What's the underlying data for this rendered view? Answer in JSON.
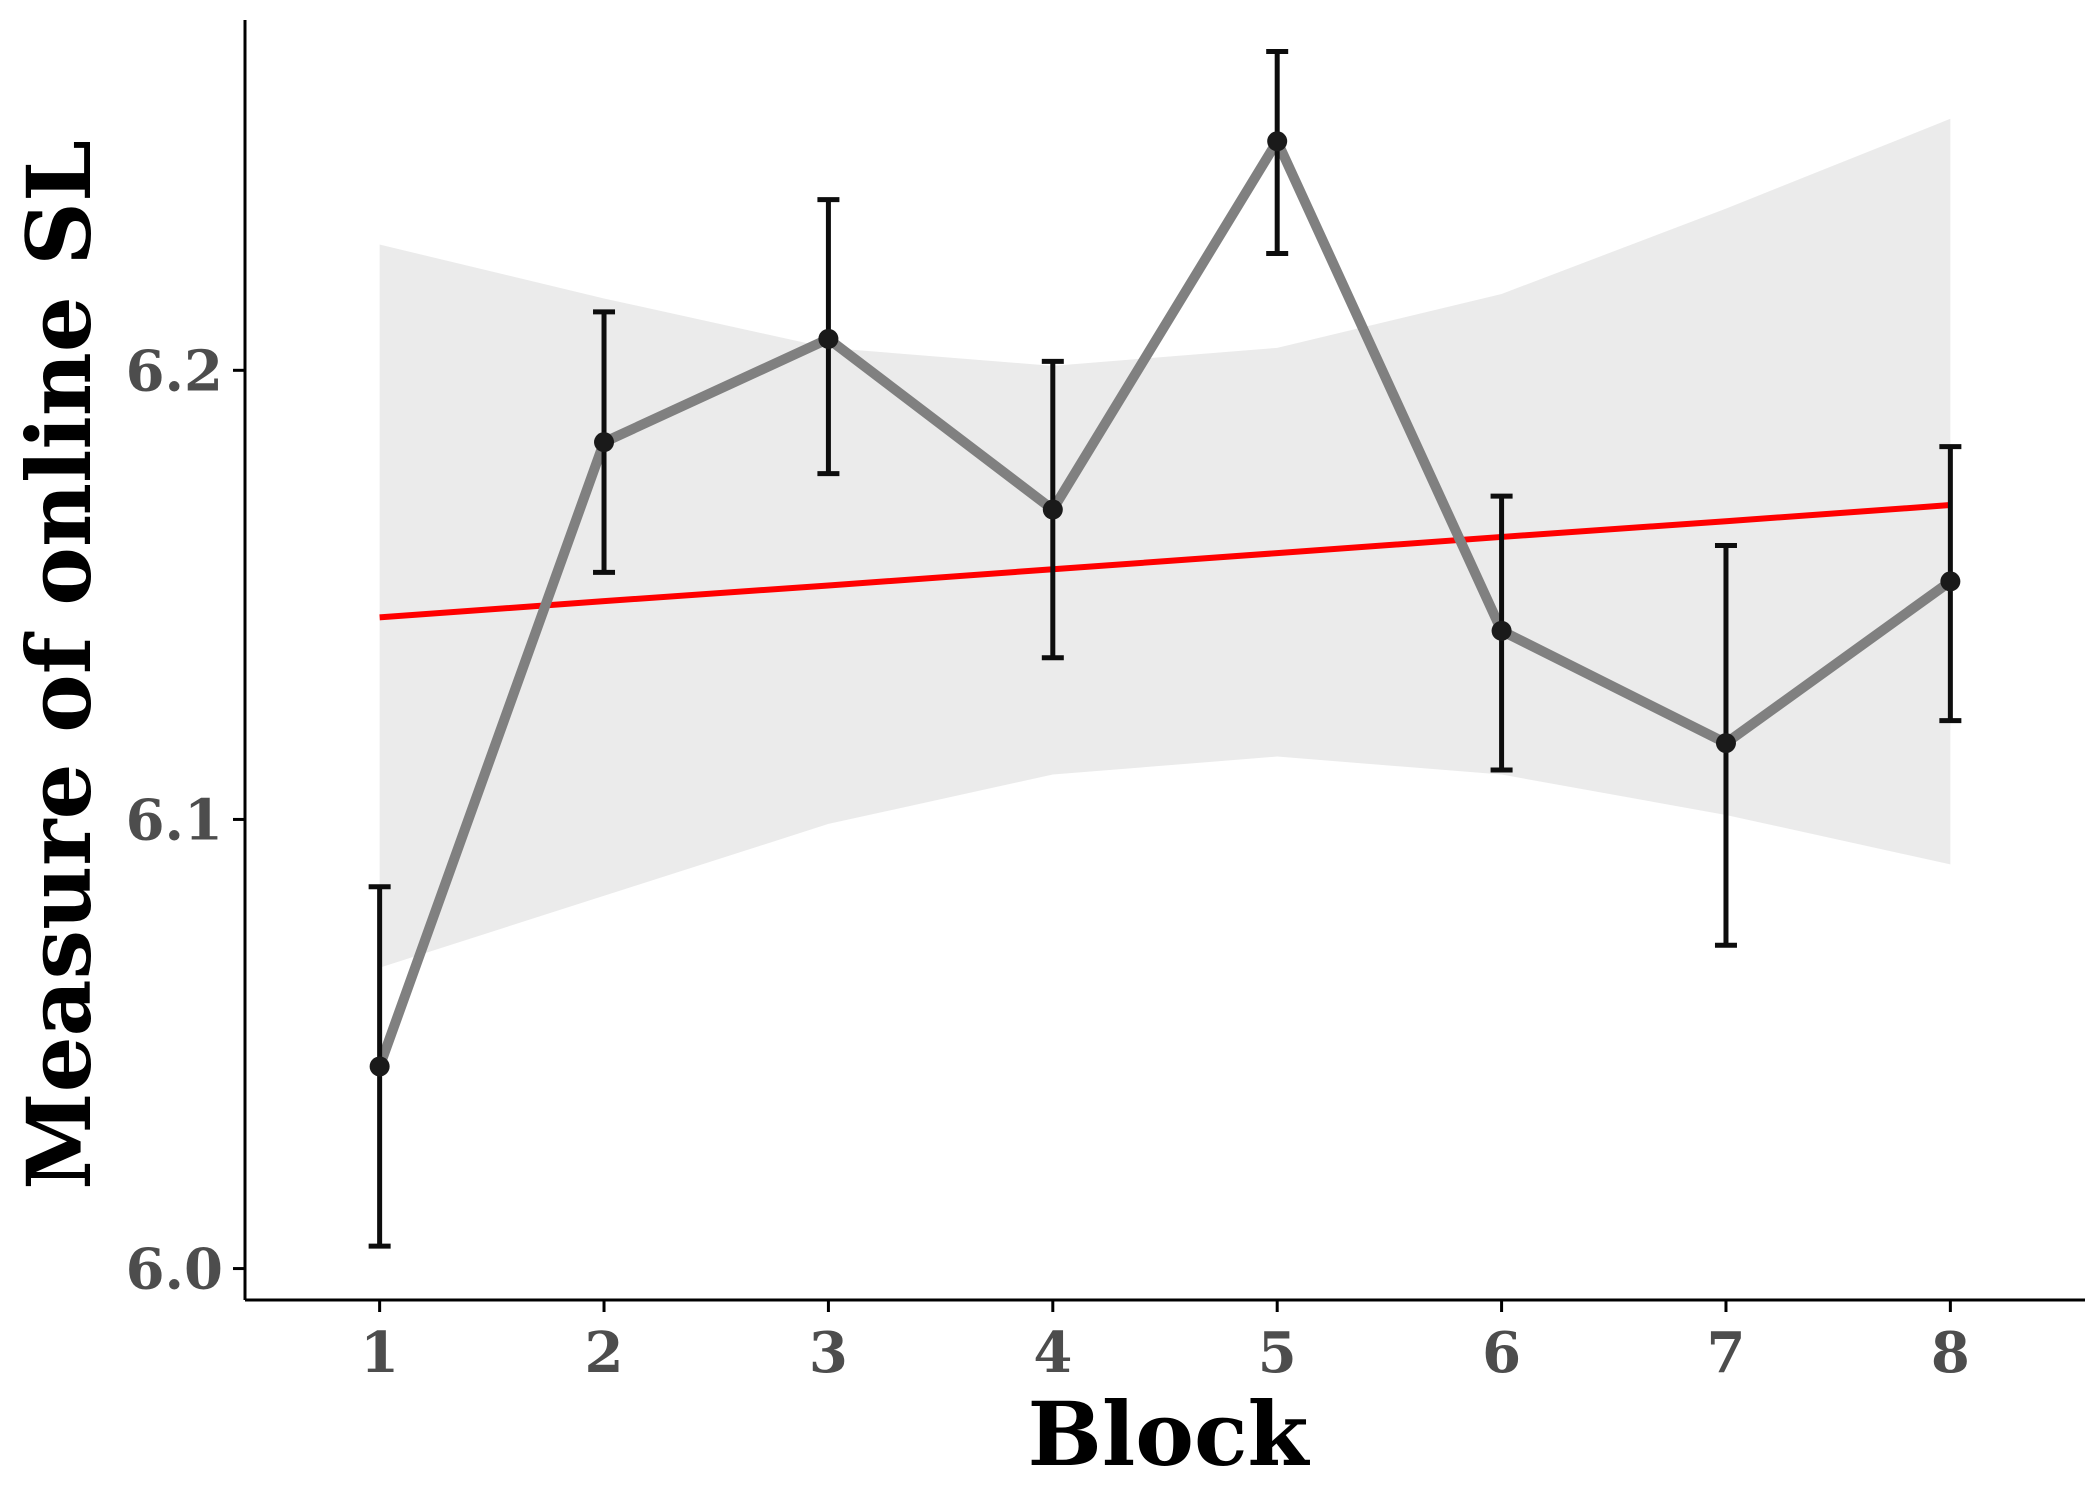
{
  "chart_data": {
    "type": "line",
    "xlabel": "Block",
    "ylabel": "Measure of online SL",
    "x": [
      1,
      2,
      3,
      4,
      5,
      6,
      7,
      8
    ],
    "xticks": [
      "1",
      "2",
      "3",
      "4",
      "5",
      "6",
      "7",
      "8"
    ],
    "xlim": [
      0.4,
      8.6
    ],
    "yticks": [
      "6.0",
      "6.1",
      "6.2"
    ],
    "ytick_values": [
      6.0,
      6.1,
      6.2
    ],
    "ylim": [
      5.993,
      6.278
    ],
    "grid": false,
    "series": [
      {
        "kind": "mean-with-error-bars",
        "values": [
          6.045,
          6.184,
          6.207,
          6.169,
          6.251,
          6.142,
          6.117,
          6.153
        ],
        "error_low": [
          6.005,
          6.155,
          6.177,
          6.136,
          6.226,
          6.111,
          6.072,
          6.122
        ],
        "error_high": [
          6.085,
          6.213,
          6.238,
          6.202,
          6.271,
          6.172,
          6.161,
          6.183
        ]
      },
      {
        "kind": "linear-fit",
        "values": [
          6.145,
          6.1486,
          6.1521,
          6.1557,
          6.1593,
          6.1629,
          6.1664,
          6.17
        ]
      },
      {
        "kind": "confidence-band",
        "lower": [
          6.067,
          6.083,
          6.099,
          6.11,
          6.114,
          6.11,
          6.101,
          6.09
        ],
        "upper": [
          6.228,
          6.216,
          6.205,
          6.201,
          6.205,
          6.217,
          6.236,
          6.256
        ]
      }
    ],
    "colors": {
      "mean_line": "#808080",
      "points": "#1a1a1a",
      "error_bars": "#0d0d0d",
      "fit_line": "#ff0000",
      "band": "#ebebeb",
      "axes": "#000000",
      "tick_labels": "#4d4d4d"
    }
  }
}
